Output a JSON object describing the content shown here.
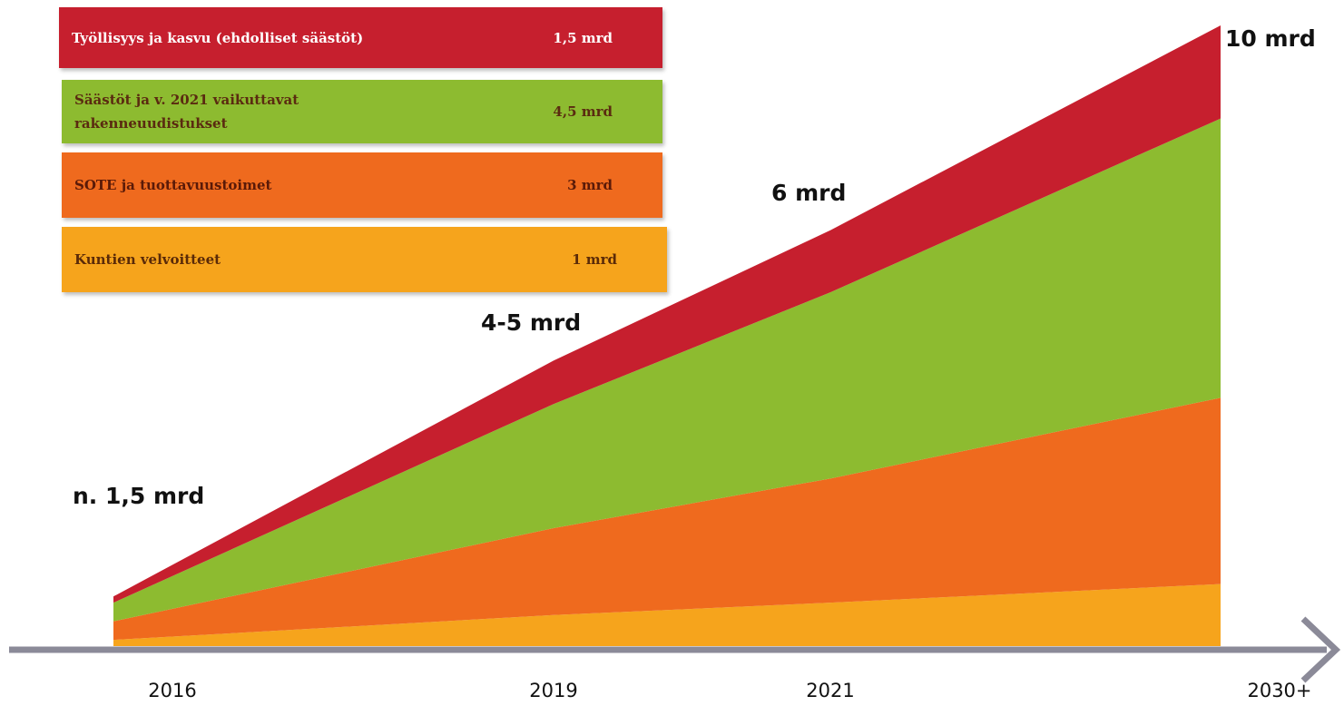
{
  "chart_data": {
    "type": "stacked_area",
    "categories": [
      "2016",
      "2019",
      "2021",
      "2030+"
    ],
    "ylim": [
      0,
      10
    ],
    "series": [
      {
        "name": "Kuntien velvoitteet",
        "amount_label": "1 mrd",
        "color": "#f6a41c",
        "values": [
          0.1,
          0.5,
          0.7,
          1
        ]
      },
      {
        "name": "SOTE ja tuottavuustoimet",
        "amount_label": "3 mrd",
        "color": "#ef6a1e",
        "values": [
          0.3,
          1.4,
          2.0,
          3
        ]
      },
      {
        "name": "Säästöt ja v. 2021 vaikuttavat rakenneuudistukset",
        "amount_label": "4,5 mrd",
        "color": "#8dbb30",
        "values": [
          0.3,
          2.0,
          3.0,
          4.5
        ]
      },
      {
        "name": "Työllisyys ja kasvu  (ehdolliset säästöt)",
        "amount_label": "1,5 mrd",
        "color": "#c61f2e",
        "values": [
          0.1,
          0.7,
          1.0,
          1.5
        ]
      }
    ],
    "annotations": [
      "n. 1,5 mrd",
      "4-5 mrd",
      "6 mrd",
      "10 mrd"
    ]
  }
}
